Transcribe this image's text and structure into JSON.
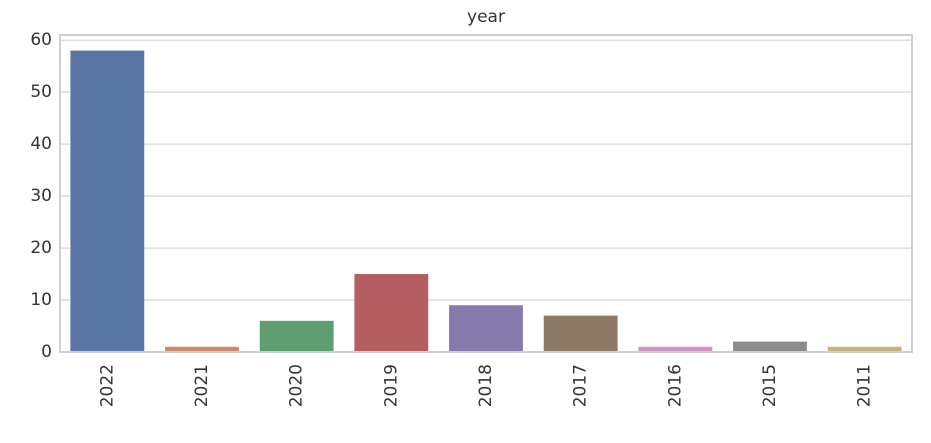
{
  "chart_data": {
    "type": "bar",
    "title": "year",
    "categories": [
      "2022",
      "2021",
      "2020",
      "2019",
      "2018",
      "2017",
      "2016",
      "2015",
      "2011"
    ],
    "values": [
      58,
      1,
      6,
      15,
      9,
      7,
      1,
      2,
      1
    ],
    "colors": [
      "#5975a4",
      "#cc8963",
      "#5f9e6e",
      "#b55d60",
      "#857aab",
      "#8d7866",
      "#d095bf",
      "#8c8c8c",
      "#c1b37f"
    ],
    "ylim": [
      0,
      61
    ],
    "yticks": [
      0,
      10,
      20,
      30,
      40,
      50,
      60
    ],
    "grid": true
  }
}
